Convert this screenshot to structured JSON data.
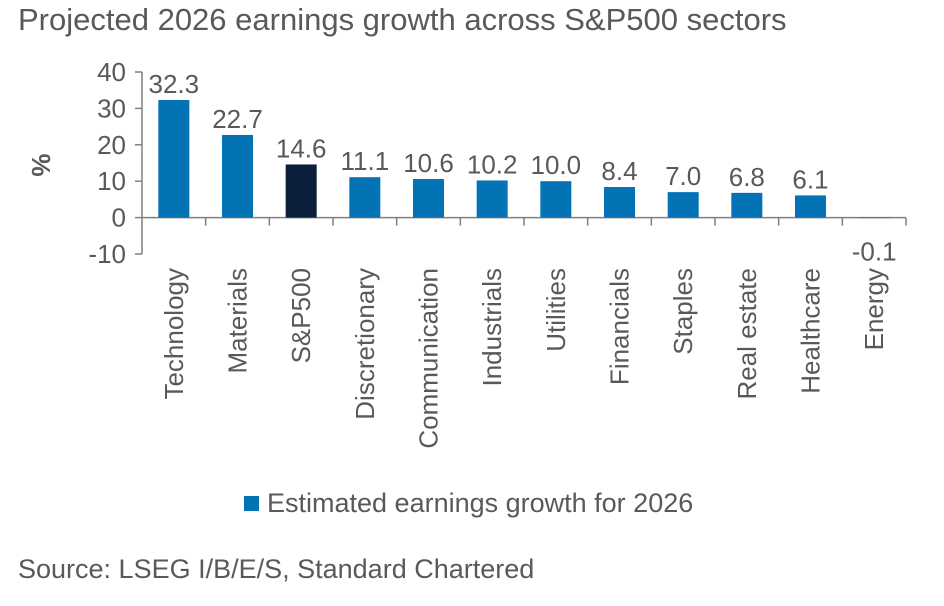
{
  "chart_data": {
    "type": "bar",
    "title": "Projected 2026 earnings growth across S&P500 sectors",
    "ylabel": "%",
    "xlabel": "",
    "ylim": [
      -10,
      40
    ],
    "yticks": [
      -10,
      0,
      10,
      20,
      30,
      40
    ],
    "categories": [
      "Technology",
      "Materials",
      "S&P500",
      "Discretionary",
      "Communication",
      "Industrials",
      "Utilities",
      "Financials",
      "Staples",
      "Real estate",
      "Healthcare",
      "Energy"
    ],
    "value_labels": [
      "32.3",
      "22.7",
      "14.6",
      "11.1",
      "10.6",
      "10.2",
      "10.0",
      "8.4",
      "7.0",
      "6.8",
      "6.1",
      "-0.1"
    ],
    "series": [
      {
        "name": "Estimated earnings growth for 2026",
        "values": [
          32.3,
          22.7,
          14.6,
          11.1,
          10.6,
          10.2,
          10.0,
          8.4,
          7.0,
          6.8,
          6.1,
          -0.1
        ],
        "color": "#0473B6",
        "highlight_index": 2,
        "highlight_color": "#0B1F3D"
      }
    ],
    "grid": false,
    "legend_position": "bottom-center",
    "source": "Source: LSEG I/B/E/S, Standard Chartered"
  }
}
